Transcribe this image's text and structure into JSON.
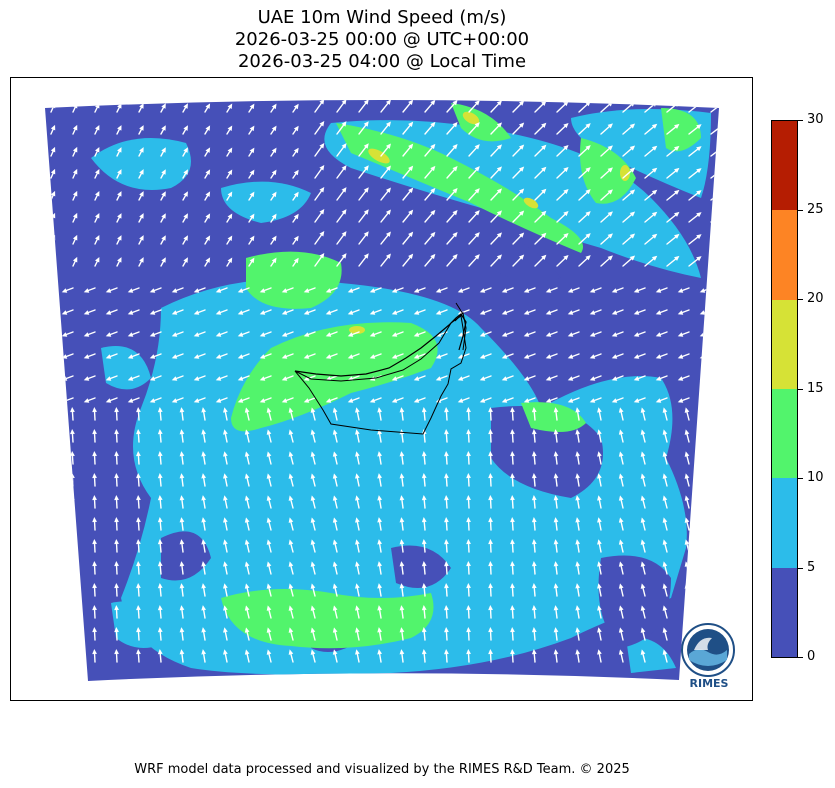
{
  "title": {
    "line1": "UAE 10m Wind Speed (m/s)",
    "line2": "2026-03-25 00:00 @ UTC+00:00",
    "line3": "2026-03-25 04:00 @ Local Time"
  },
  "colorbar": {
    "ticks": [
      "0",
      "5",
      "10",
      "15",
      "20",
      "25",
      "30"
    ],
    "bins": [
      {
        "min": 0,
        "max": 5,
        "color": "#4650b8"
      },
      {
        "min": 5,
        "max": 10,
        "color": "#2cbcea"
      },
      {
        "min": 10,
        "max": 15,
        "color": "#52f46c"
      },
      {
        "min": 15,
        "max": 20,
        "color": "#d6e236"
      },
      {
        "min": 20,
        "max": 25,
        "color": "#fd8424"
      },
      {
        "min": 25,
        "max": 30,
        "color": "#b51d02"
      }
    ]
  },
  "colors": {
    "calm": "#4650b8",
    "light": "#2cbcea",
    "moderate": "#52f46c",
    "fresh": "#d6e236",
    "vector": "#ffffff",
    "border": "#000000"
  },
  "logo": {
    "text": "RIMES"
  },
  "footer": "WRF model data processed and visualized by the RIMES R&D Team. © 2025"
}
